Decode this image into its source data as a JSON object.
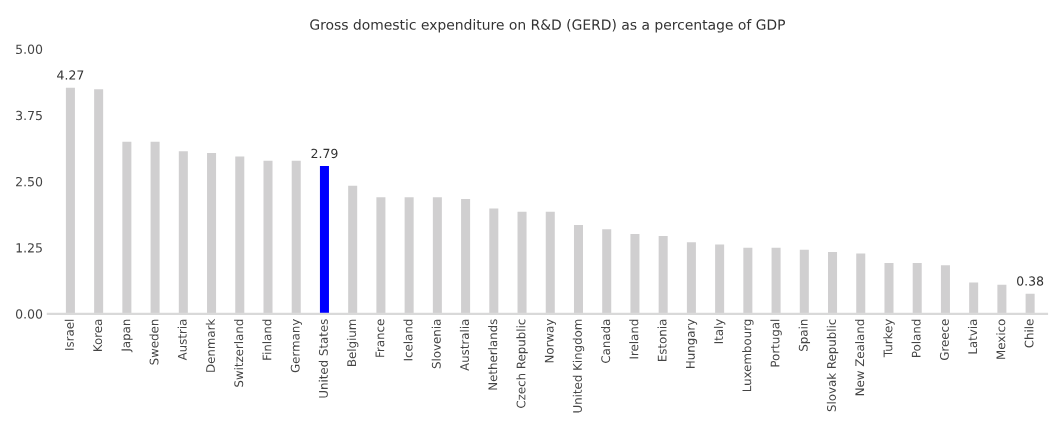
{
  "chart_data": {
    "type": "bar",
    "title": "Gross domestic expenditure on R&D (GERD) as a percentage of GDP",
    "categories": [
      "Israel",
      "Korea",
      "Japan",
      "Sweden",
      "Austria",
      "Denmark",
      "Switzerland",
      "Finland",
      "Germany",
      "United States",
      "Belgium",
      "France",
      "Iceland",
      "Slovenia",
      "Australia",
      "Netherlands",
      "Czech Republic",
      "Norway",
      "United Kingdom",
      "Canada",
      "Ireland",
      "Estonia",
      "Hungary",
      "Italy",
      "Luxembourg",
      "Portugal",
      "Spain",
      "Slovak Republic",
      "New Zealand",
      "Turkey",
      "Poland",
      "Greece",
      "Latvia",
      "Mexico",
      "Chile"
    ],
    "values": [
      4.27,
      4.24,
      3.25,
      3.25,
      3.07,
      3.04,
      2.97,
      2.89,
      2.89,
      2.79,
      2.42,
      2.2,
      2.2,
      2.2,
      2.17,
      1.99,
      1.93,
      1.93,
      1.68,
      1.6,
      1.51,
      1.47,
      1.35,
      1.31,
      1.25,
      1.25,
      1.21,
      1.17,
      1.14,
      0.96,
      0.96,
      0.92,
      0.59,
      0.55,
      0.38
    ],
    "colors": [
      "#d0cfd0",
      "#d0cfd0",
      "#d0cfd0",
      "#d0cfd0",
      "#d0cfd0",
      "#d0cfd0",
      "#d0cfd0",
      "#d0cfd0",
      "#d0cfd0",
      "#0000ff",
      "#d0cfd0",
      "#d0cfd0",
      "#d0cfd0",
      "#d0cfd0",
      "#d0cfd0",
      "#d0cfd0",
      "#d0cfd0",
      "#d0cfd0",
      "#d0cfd0",
      "#d0cfd0",
      "#d0cfd0",
      "#d0cfd0",
      "#d0cfd0",
      "#d0cfd0",
      "#d0cfd0",
      "#d0cfd0",
      "#d0cfd0",
      "#d0cfd0",
      "#d0cfd0",
      "#d0cfd0",
      "#d0cfd0",
      "#d0cfd0",
      "#d0cfd0",
      "#d0cfd0",
      "#d0cfd0"
    ],
    "value_labels": [
      "4.27",
      null,
      null,
      null,
      null,
      null,
      null,
      null,
      null,
      "2.79",
      null,
      null,
      null,
      null,
      null,
      null,
      null,
      null,
      null,
      null,
      null,
      null,
      null,
      null,
      null,
      null,
      null,
      null,
      null,
      null,
      null,
      null,
      null,
      null,
      "0.38"
    ],
    "ylim": [
      0,
      5
    ],
    "yticks": [
      {
        "value": 0,
        "label": "0.00"
      },
      {
        "value": 1.25,
        "label": "1.25"
      },
      {
        "value": 2.5,
        "label": "2.50"
      },
      {
        "value": 3.75,
        "label": "3.75"
      },
      {
        "value": 5,
        "label": "5.00"
      }
    ],
    "grid": false,
    "legend": false
  }
}
